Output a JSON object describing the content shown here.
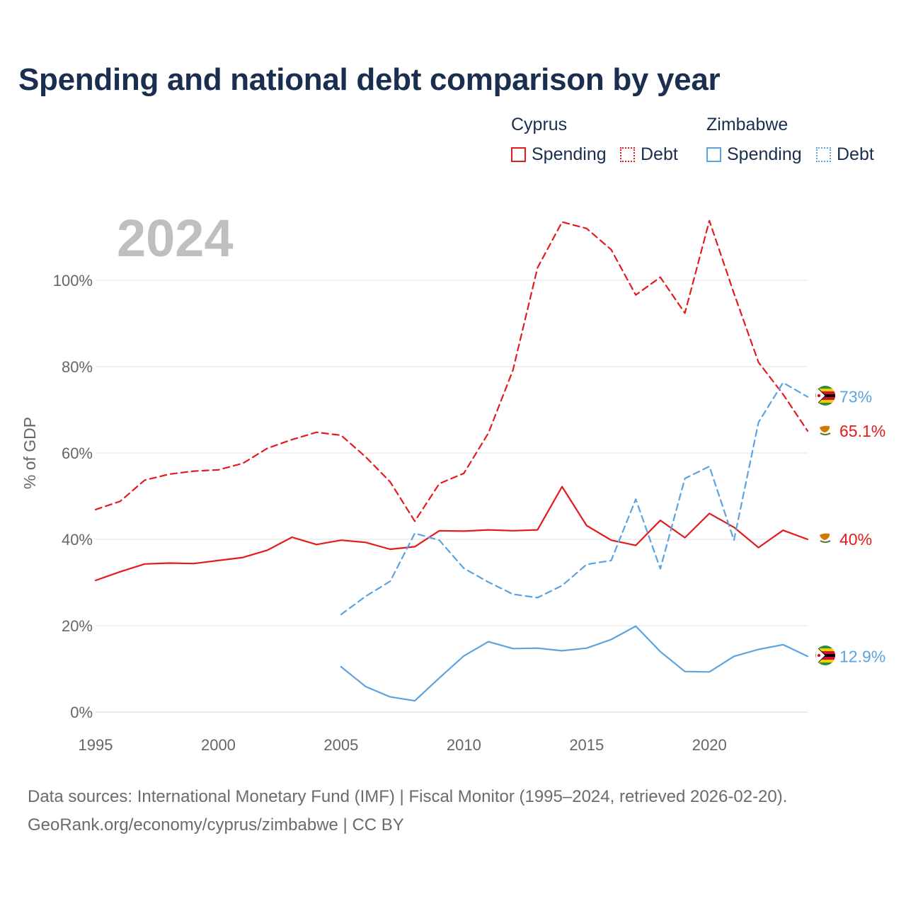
{
  "title": "Spending and national debt comparison by year",
  "legend": {
    "groups": [
      {
        "name": "Cyprus",
        "color": "#e41a1c",
        "items": [
          "Spending",
          "Debt"
        ]
      },
      {
        "name": "Zimbabwe",
        "color": "#5ba3e0",
        "items": [
          "Spending",
          "Debt"
        ]
      }
    ]
  },
  "year_label": "2024",
  "footer": {
    "line1": "Data sources: International Monetary Fund (IMF) | Fiscal Monitor (1995–2024, retrieved 2026-02-20).",
    "line2": "GeoRank.org/economy/cyprus/zimbabwe | CC BY"
  },
  "chart_data": {
    "type": "line",
    "title": "Spending and national debt comparison by year",
    "xlabel": "",
    "ylabel": "% of GDP",
    "xlim": [
      1995,
      2024
    ],
    "ylim": [
      0,
      110
    ],
    "yticks": [
      0,
      20,
      40,
      60,
      80,
      100
    ],
    "ytick_labels": [
      "0%",
      "20%",
      "40%",
      "60%",
      "80%",
      "100%"
    ],
    "xticks": [
      1995,
      2000,
      2005,
      2010,
      2015,
      2020
    ],
    "xtick_labels": [
      "1995",
      "2000",
      "2005",
      "2010",
      "2015",
      "2020"
    ],
    "grid": true,
    "series": [
      {
        "name": "Cyprus Spending",
        "country": "Cyprus",
        "color": "#e41a1c",
        "dashed": false,
        "x": [
          1995,
          1996,
          1997,
          1998,
          1999,
          2000,
          2001,
          2002,
          2003,
          2004,
          2005,
          2006,
          2007,
          2008,
          2009,
          2010,
          2011,
          2012,
          2013,
          2014,
          2015,
          2016,
          2017,
          2018,
          2019,
          2020,
          2021,
          2022,
          2023,
          2024
        ],
        "values": [
          30.5,
          32.5,
          34.3,
          34.5,
          34.4,
          35.1,
          35.8,
          37.5,
          40.5,
          38.8,
          39.8,
          39.3,
          37.7,
          38.3,
          42.0,
          41.9,
          42.2,
          42.0,
          42.2,
          52.2,
          43.2,
          39.8,
          38.6,
          44.4,
          40.4,
          46.0,
          42.8,
          38.1,
          42.1,
          40.0
        ],
        "end_label": "40%"
      },
      {
        "name": "Cyprus Debt",
        "country": "Cyprus",
        "color": "#e41a1c",
        "dashed": true,
        "x": [
          1995,
          1996,
          1997,
          1998,
          1999,
          2000,
          2001,
          2002,
          2003,
          2004,
          2005,
          2006,
          2007,
          2008,
          2009,
          2010,
          2011,
          2012,
          2013,
          2014,
          2015,
          2016,
          2017,
          2018,
          2019,
          2020,
          2021,
          2022,
          2023,
          2024
        ],
        "values": [
          46.9,
          48.8,
          53.7,
          55.1,
          55.8,
          56.1,
          57.6,
          61.1,
          63.1,
          64.8,
          64.1,
          59.1,
          53.3,
          44.2,
          52.9,
          55.3,
          64.6,
          79.2,
          102.9,
          113.5,
          112.0,
          107.1,
          96.6,
          100.7,
          92.4,
          113.8,
          97.0,
          81.0,
          73.6,
          65.1
        ],
        "end_label": "65.1%"
      },
      {
        "name": "Zimbabwe Spending",
        "country": "Zimbabwe",
        "color": "#5ba3e0",
        "dashed": false,
        "x": [
          2005,
          2006,
          2007,
          2008,
          2009,
          2010,
          2011,
          2012,
          2013,
          2014,
          2015,
          2016,
          2017,
          2018,
          2019,
          2020,
          2021,
          2022,
          2023,
          2024
        ],
        "values": [
          10.5,
          5.9,
          3.5,
          2.6,
          7.9,
          13.0,
          16.3,
          14.7,
          14.8,
          14.2,
          14.8,
          16.8,
          19.9,
          14.0,
          9.4,
          9.3,
          12.9,
          14.5,
          15.6,
          12.9
        ],
        "end_label": "12.9%"
      },
      {
        "name": "Zimbabwe Debt",
        "country": "Zimbabwe",
        "color": "#5ba3e0",
        "dashed": true,
        "x": [
          2005,
          2006,
          2007,
          2008,
          2009,
          2010,
          2011,
          2012,
          2013,
          2014,
          2015,
          2016,
          2017,
          2018,
          2019,
          2020,
          2021,
          2022,
          2023,
          2024
        ],
        "values": [
          22.6,
          26.8,
          30.3,
          41.4,
          39.8,
          33.3,
          30.1,
          27.3,
          26.5,
          29.3,
          34.2,
          35.1,
          49.3,
          33.2,
          54.1,
          56.9,
          39.8,
          67.1,
          76.3,
          73.0
        ],
        "end_label": "73%"
      }
    ]
  }
}
